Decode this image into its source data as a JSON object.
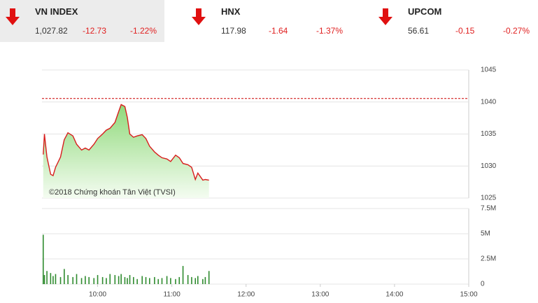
{
  "indices": [
    {
      "name": "VN INDEX",
      "value": "1,027.82",
      "change": "-12.73",
      "pct": "-1.22%"
    },
    {
      "name": "HNX",
      "value": "117.98",
      "change": "-1.64",
      "pct": "-1.37%"
    },
    {
      "name": "UPCOM",
      "value": "56.61",
      "change": "-0.15",
      "pct": "-0.27%"
    }
  ],
  "chart_data": [
    {
      "type": "line",
      "annotation": "©2018 Chứng khoán Tân Việt (TVSI)",
      "color": "#d81c1c",
      "reference": 1040.55,
      "x": [
        556,
        557,
        559,
        562,
        564,
        566,
        570,
        573,
        576,
        580,
        583,
        587,
        590,
        593,
        597,
        600,
        604,
        607,
        610,
        614,
        617,
        619,
        622,
        624,
        626,
        629,
        632,
        636,
        639,
        642,
        646,
        649,
        652,
        656,
        659,
        663,
        666,
        669,
        673,
        676,
        679,
        681,
        685,
        687,
        690
      ],
      "values": [
        1031.8,
        1035,
        1031.4,
        1028.7,
        1028.5,
        1029.8,
        1031.4,
        1034.1,
        1035.2,
        1034.7,
        1033.4,
        1032.5,
        1032.8,
        1032.5,
        1033.4,
        1034.3,
        1035,
        1035.6,
        1035.9,
        1036.8,
        1038.5,
        1039.6,
        1039.3,
        1037.6,
        1035,
        1034.5,
        1034.7,
        1034.9,
        1034.3,
        1033.1,
        1032.2,
        1031.7,
        1031.3,
        1031.1,
        1030.7,
        1031.7,
        1031.3,
        1030.4,
        1030.2,
        1029.8,
        1027.9,
        1028.9,
        1027.8,
        1027.9,
        1027.8
      ],
      "xlim": [
        555,
        900
      ],
      "ylim": [
        1025,
        1045
      ],
      "yticks": [
        1025,
        1030,
        1035,
        1040,
        1045
      ],
      "grid": true
    },
    {
      "type": "bar",
      "color": "#2e8b2e",
      "x": [
        556,
        557,
        559,
        562,
        564,
        566,
        570,
        573,
        576,
        580,
        583,
        587,
        590,
        593,
        597,
        600,
        604,
        607,
        610,
        614,
        617,
        619,
        622,
        624,
        626,
        629,
        632,
        636,
        639,
        642,
        646,
        649,
        652,
        656,
        659,
        663,
        666,
        669,
        673,
        676,
        679,
        681,
        685,
        687,
        690
      ],
      "values": [
        4900000,
        900000,
        1300000,
        1100000,
        800000,
        1000000,
        700000,
        1500000,
        900000,
        700000,
        1000000,
        600000,
        800000,
        700000,
        600000,
        900000,
        700000,
        600000,
        1000000,
        900000,
        800000,
        1000000,
        700000,
        600000,
        900000,
        700000,
        500000,
        800000,
        700000,
        600000,
        700000,
        500000,
        600000,
        800000,
        600000,
        500000,
        700000,
        1800000,
        900000,
        700000,
        600000,
        800000,
        500000,
        700000,
        1300000
      ],
      "xlim": [
        555,
        900
      ],
      "ylim": [
        0,
        7500000
      ],
      "yticks": [
        0,
        {
          "value": 2500000,
          "label": "2.5M"
        },
        {
          "value": 5000000,
          "label": "5M"
        },
        {
          "value": 7500000,
          "label": "7.5M"
        }
      ],
      "xticks": [
        {
          "value": 600,
          "label": "10:00"
        },
        {
          "value": 660,
          "label": "11:00"
        },
        {
          "value": 720,
          "label": "12:00"
        },
        {
          "value": 780,
          "label": "13:00"
        },
        {
          "value": 840,
          "label": "14:00"
        },
        {
          "value": 900,
          "label": "15:00"
        }
      ],
      "grid": true
    }
  ]
}
